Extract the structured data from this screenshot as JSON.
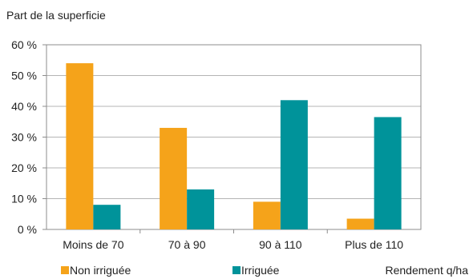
{
  "chart_data": {
    "type": "bar",
    "title": "",
    "ylabel": "Part de la superficie",
    "xlabel": "Rendement q/ha",
    "categories": [
      "Moins de 70",
      "70 à 90",
      "90 à 110",
      "Plus de 110"
    ],
    "series": [
      {
        "name": "Non irriguée",
        "color": "#f5a31a",
        "values": [
          54,
          33,
          9,
          3.5
        ]
      },
      {
        "name": "Irriguée",
        "color": "#00939a",
        "values": [
          8,
          13,
          42,
          36.5
        ]
      }
    ],
    "ylim": [
      0,
      60
    ],
    "yticks": [
      0,
      10,
      20,
      30,
      40,
      50,
      60
    ],
    "ytick_labels": [
      "0 %",
      "10 %",
      "20 %",
      "30 %",
      "40 %",
      "50 %",
      "60 %"
    ],
    "grid": true,
    "legend_position": "bottom"
  }
}
